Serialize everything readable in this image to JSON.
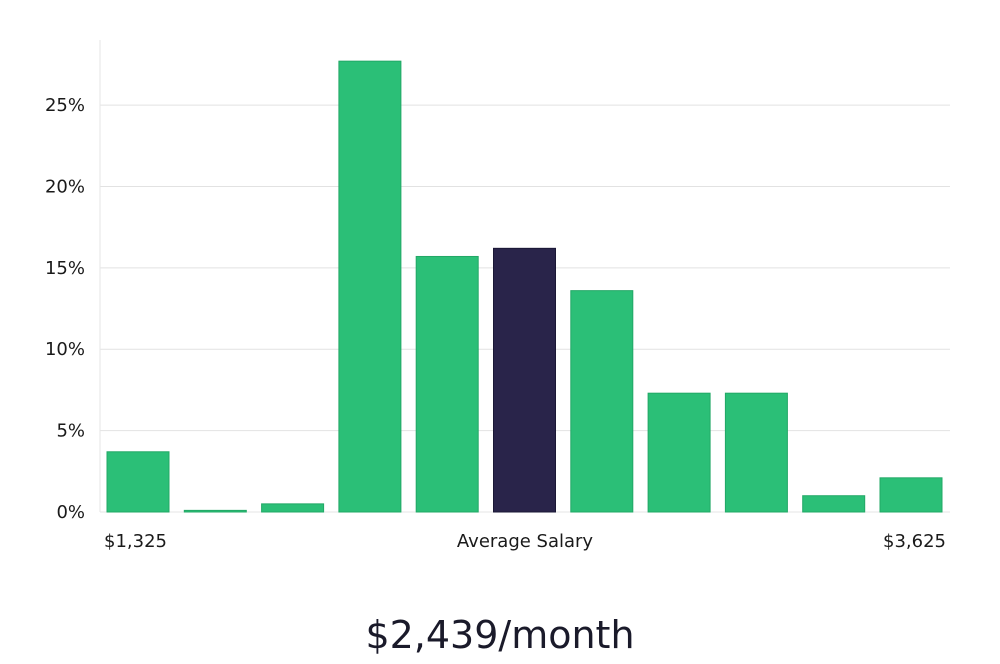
{
  "chart_data": {
    "type": "bar",
    "categories": [
      "1",
      "2",
      "3",
      "4",
      "5",
      "6",
      "7",
      "8",
      "9",
      "10",
      "11"
    ],
    "values": [
      3.7,
      0.1,
      0.5,
      27.7,
      15.7,
      16.2,
      13.6,
      7.3,
      7.3,
      1.0,
      2.1
    ],
    "highlight_index": 5,
    "ylim": [
      0,
      29
    ],
    "yticks": [
      0,
      5,
      10,
      15,
      20,
      25
    ],
    "ytick_suffix": "%",
    "xlabel_left": "$1,325",
    "xlabel_center": "Average Salary",
    "xlabel_right": "$3,625",
    "summary": "$2,439/month",
    "grid": true,
    "colors": {
      "bar": "#2bbf77",
      "bar_edge": "#22a866",
      "highlight": "#29244a",
      "highlight_edge": "#1a1735",
      "grid": "#e2e2e2",
      "axis": "#e6e6e6"
    }
  }
}
